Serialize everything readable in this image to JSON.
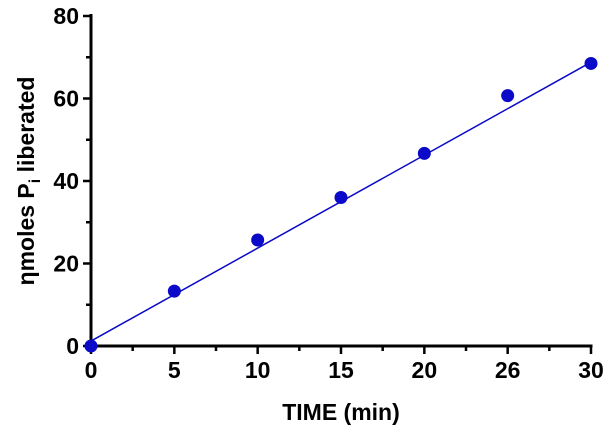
{
  "chart_data": {
    "type": "scatter",
    "title": "",
    "xlabel": "TIME (min)",
    "ylabel": {
      "prefix": "ηmoles P",
      "subscript": "i",
      "suffix": " liberated"
    },
    "xlim": [
      0,
      30
    ],
    "ylim": [
      0,
      80
    ],
    "x_ticks": [
      "0",
      "5",
      "10",
      "15",
      "20",
      "26",
      "30"
    ],
    "y_ticks": [
      "0",
      "20",
      "40",
      "60",
      "80"
    ],
    "grid": false,
    "points": [
      {
        "x": 0,
        "y": 0
      },
      {
        "x": 5,
        "y": 13.3
      },
      {
        "x": 10,
        "y": 25.7
      },
      {
        "x": 15,
        "y": 36.0
      },
      {
        "x": 20,
        "y": 46.7
      },
      {
        "x": 26,
        "y": 60.7
      },
      {
        "x": 30,
        "y": 68.5
      }
    ],
    "fit_line": {
      "x": [
        0,
        30
      ],
      "y": [
        1.2,
        68.8
      ]
    },
    "color": "#0a0ac8"
  }
}
